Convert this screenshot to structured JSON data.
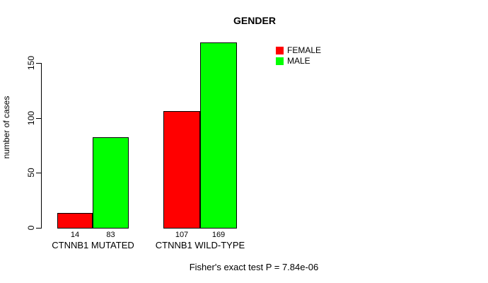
{
  "chart_data": {
    "type": "bar",
    "title": "GENDER",
    "ylabel": "number of cases",
    "xlabel": "",
    "categories": [
      "CTNNB1 MUTATED",
      "CTNNB1 WILD-TYPE"
    ],
    "series": [
      {
        "name": "FEMALE",
        "color": "#ff0000",
        "values": [
          14,
          107
        ]
      },
      {
        "name": "MALE",
        "color": "#00ff00",
        "values": [
          83,
          169
        ]
      }
    ],
    "bar_value_labels": [
      [
        "14",
        "83"
      ],
      [
        "107",
        "169"
      ]
    ],
    "yticks": [
      0,
      50,
      100,
      150
    ],
    "ylim": [
      0,
      170
    ],
    "grid": false,
    "legend_position": "top-right",
    "annotation": "Fisher's exact test P = 7.84e-06"
  },
  "colors": {
    "background": "#ffffff",
    "axis": "#000000",
    "bar_border": "#000000",
    "text": "#000000",
    "female": "#ff0000",
    "male": "#00ff00"
  }
}
